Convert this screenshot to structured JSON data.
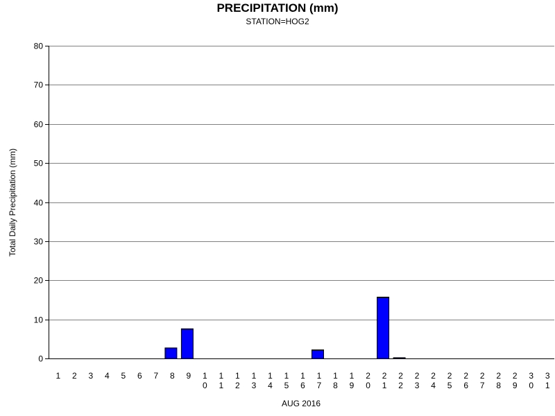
{
  "chart_data": {
    "type": "bar",
    "title": "PRECIPITATION (mm)",
    "subtitle": "STATION=HOG2",
    "xlabel": "AUG 2016",
    "ylabel": "Total Daily Precipitation (mm)",
    "ylim": [
      0,
      80
    ],
    "yticks": [
      "0",
      "10",
      "20",
      "30",
      "40",
      "50",
      "60",
      "70",
      "80"
    ],
    "grid": true,
    "bar_color": "#0000ff",
    "categories": [
      "1",
      "2",
      "3",
      "4",
      "5",
      "6",
      "7",
      "8",
      "9",
      "10",
      "11",
      "12",
      "13",
      "14",
      "15",
      "16",
      "17",
      "18",
      "19",
      "20",
      "21",
      "22",
      "23",
      "24",
      "25",
      "26",
      "27",
      "28",
      "29",
      "30",
      "31"
    ],
    "values": [
      0,
      0,
      0,
      0,
      0,
      0,
      0,
      2.7,
      7.6,
      0,
      0,
      0,
      0,
      0,
      0,
      0,
      2.2,
      0,
      0,
      0,
      15.7,
      0.2,
      0,
      0,
      0,
      0,
      0,
      0,
      0,
      0,
      0
    ]
  }
}
